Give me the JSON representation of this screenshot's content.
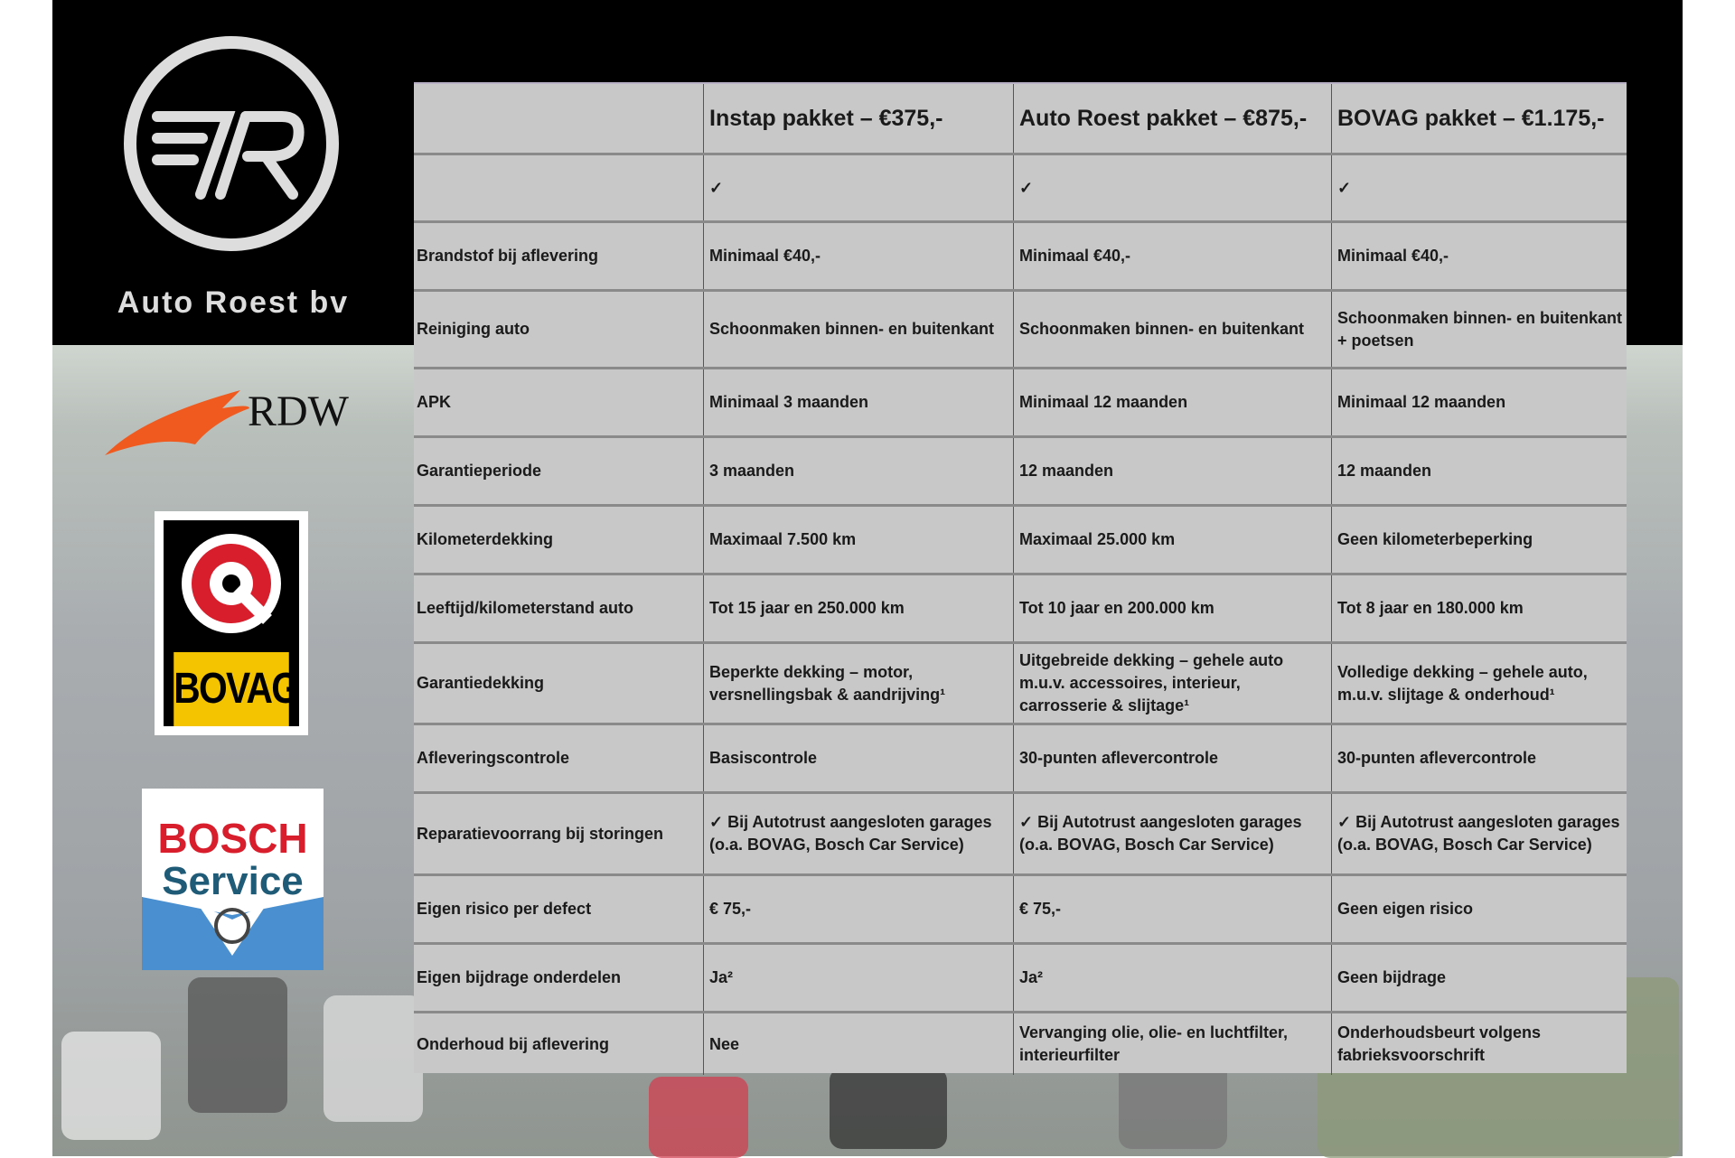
{
  "brand": {
    "name": "Auto Roest bv",
    "logos": [
      "RDW",
      "BOVAG",
      "BOSCH Service"
    ]
  },
  "logos": {
    "rdw": "RDW",
    "bovag": "BOVAG",
    "bosch_1": "BOSCH",
    "bosch_2": "Service"
  },
  "colors": {
    "table_bg": "#c8c8c8",
    "header_bg": "#000000",
    "bovag_yellow": "#f5c400",
    "bosch_red": "#d81e2c",
    "rdw_orange": "#f05a1e"
  },
  "table": {
    "headers": [
      "",
      "Instap pakket – €375,-",
      "Auto Roest pakket – €875,-",
      "BOVAG pakket – €1.175,-"
    ],
    "rows": [
      [
        "",
        "✓",
        "✓",
        "✓"
      ],
      [
        "Brandstof bij aflevering",
        "Minimaal €40,-",
        "Minimaal €40,-",
        "Minimaal €40,-"
      ],
      [
        "Reiniging auto",
        "Schoonmaken binnen- en buitenkant",
        "Schoonmaken binnen- en buitenkant",
        "Schoonmaken binnen- en buitenkant + poetsen"
      ],
      [
        "APK",
        "Minimaal 3 maanden",
        "Minimaal 12 maanden",
        "Minimaal 12 maanden"
      ],
      [
        "Garantieperiode",
        "3 maanden",
        "12 maanden",
        "12 maanden"
      ],
      [
        "Kilometerdekking",
        "Maximaal 7.500 km",
        "Maximaal 25.000 km",
        "Geen kilometerbeperking"
      ],
      [
        "Leeftijd/kilometerstand auto",
        "Tot 15 jaar en 250.000 km",
        "Tot 10 jaar en 200.000 km",
        "Tot 8 jaar en 180.000 km"
      ],
      [
        "Garantiedekking",
        "Beperkte dekking – motor, versnellingsbak & aandrijving¹",
        "Uitgebreide dekking – gehele auto m.u.v. accessoires, interieur, carrosserie & slijtage¹",
        "Volledige dekking – gehele auto, m.u.v. slijtage & onderhoud¹"
      ],
      [
        "Afleveringscontrole",
        "Basiscontrole",
        "30-punten aflevercontrole",
        "30-punten aflevercontrole"
      ],
      [
        "Reparatievoorrang bij storingen",
        "✓ Bij Autotrust aangesloten garages (o.a. BOVAG, Bosch Car Service)",
        "✓ Bij Autotrust aangesloten garages (o.a. BOVAG, Bosch Car Service)",
        "✓ Bij Autotrust aangesloten garages (o.a. BOVAG, Bosch Car Service)"
      ],
      [
        "Eigen risico per defect",
        "€ 75,-",
        "€ 75,-",
        "Geen eigen risico"
      ],
      [
        "Eigen bijdrage onderdelen",
        "Ja²",
        "Ja²",
        "Geen bijdrage"
      ],
      [
        "Onderhoud bij aflevering",
        "Nee",
        "Vervanging olie, olie- en luchtfilter, interieurfilter",
        "Onderhoudsbeurt volgens fabrieksvoorschrift"
      ]
    ]
  }
}
